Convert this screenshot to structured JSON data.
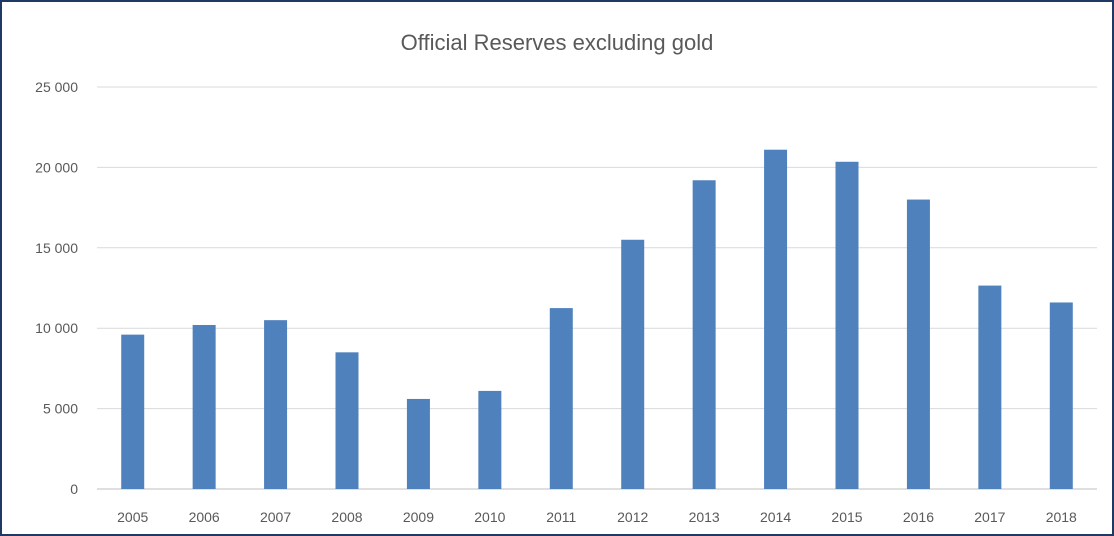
{
  "chart_data": {
    "type": "bar",
    "title": "Official Reserves excluding gold",
    "categories": [
      "2005",
      "2006",
      "2007",
      "2008",
      "2009",
      "2010",
      "2011",
      "2012",
      "2013",
      "2014",
      "2015",
      "2016",
      "2017",
      "2018"
    ],
    "series": [
      {
        "values": [
          9600,
          10200,
          10500,
          8500,
          5600,
          6100,
          11250,
          15500,
          19200,
          21100,
          20350,
          18000,
          12650,
          11600
        ]
      }
    ],
    "ylim": [
      0,
      25000
    ],
    "yticks": [
      "0",
      "5 000",
      "10 000",
      "15 000",
      "20 000",
      "25 000"
    ],
    "ytick_values": [
      0,
      5000,
      10000,
      15000,
      20000,
      25000
    ],
    "grid": true,
    "legend": "none",
    "colors": {
      "bar": "#4f81bd",
      "grid": "#d9d9d9",
      "axis": "#bfbfbf",
      "frame": "#1f3864",
      "text": "#595959"
    }
  }
}
